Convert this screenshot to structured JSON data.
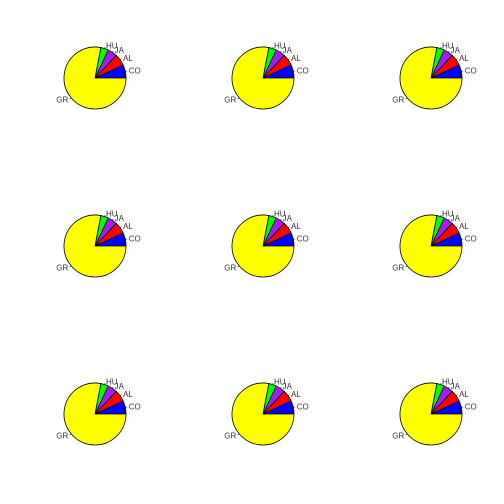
{
  "chart_data": {
    "type": "pie",
    "grid": {
      "rows": 3,
      "cols": 3
    },
    "categories": [
      "CO",
      "AL",
      "JA",
      "HU",
      "GR"
    ],
    "colors": [
      "#0000ff",
      "#ff0000",
      "#a020f0",
      "#00ff00",
      "#ffff00"
    ],
    "panels": [
      {
        "values": [
          7,
          6,
          5,
          4,
          78
        ]
      },
      {
        "values": [
          7,
          6,
          5,
          4,
          78
        ]
      },
      {
        "values": [
          7,
          6,
          5,
          4,
          78
        ]
      },
      {
        "values": [
          7,
          6,
          5,
          4,
          78
        ]
      },
      {
        "values": [
          7,
          6,
          5,
          4,
          78
        ]
      },
      {
        "values": [
          7,
          6,
          5,
          4,
          78
        ]
      },
      {
        "values": [
          7,
          6,
          5,
          4,
          78
        ]
      },
      {
        "values": [
          7,
          6,
          5,
          4,
          78
        ]
      },
      {
        "values": [
          7,
          6,
          5,
          4,
          78
        ]
      }
    ]
  }
}
